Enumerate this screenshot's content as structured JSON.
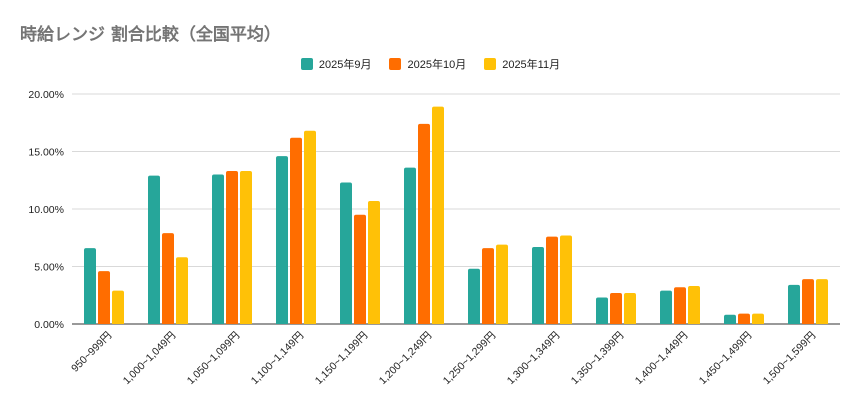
{
  "chart_data": {
    "type": "bar",
    "title": "時給レンジ 割合比較（全国平均）",
    "xlabel": "",
    "ylabel": "",
    "categories": [
      "950~999円",
      "1,000~1,049円",
      "1,050~1,099円",
      "1,100~1,149円",
      "1,150~1,199円",
      "1,200~1,249円",
      "1,250~1,299円",
      "1,300~1,349円",
      "1,350~1,399円",
      "1,400~1,449円",
      "1,450~1,499円",
      "1,500~1,599円"
    ],
    "series": [
      {
        "name": "2025年9月",
        "color": "#26a69a",
        "values": [
          6.6,
          12.9,
          13.0,
          14.6,
          12.3,
          13.6,
          4.8,
          6.7,
          2.3,
          2.9,
          0.8,
          3.4
        ]
      },
      {
        "name": "2025年10月",
        "color": "#ff6d00",
        "values": [
          4.6,
          7.9,
          13.3,
          16.2,
          9.5,
          17.4,
          6.6,
          7.6,
          2.7,
          3.2,
          0.9,
          3.9
        ]
      },
      {
        "name": "2025年11月",
        "color": "#ffc107",
        "values": [
          2.9,
          5.8,
          13.3,
          16.8,
          10.7,
          18.9,
          6.9,
          7.7,
          2.7,
          3.3,
          0.9,
          3.9
        ]
      }
    ],
    "ylim": [
      0,
      20
    ],
    "yticks": [
      "0.00%",
      "5.00%",
      "10.00%",
      "15.00%",
      "20.00%"
    ],
    "grid": true,
    "legend_position": "top"
  }
}
